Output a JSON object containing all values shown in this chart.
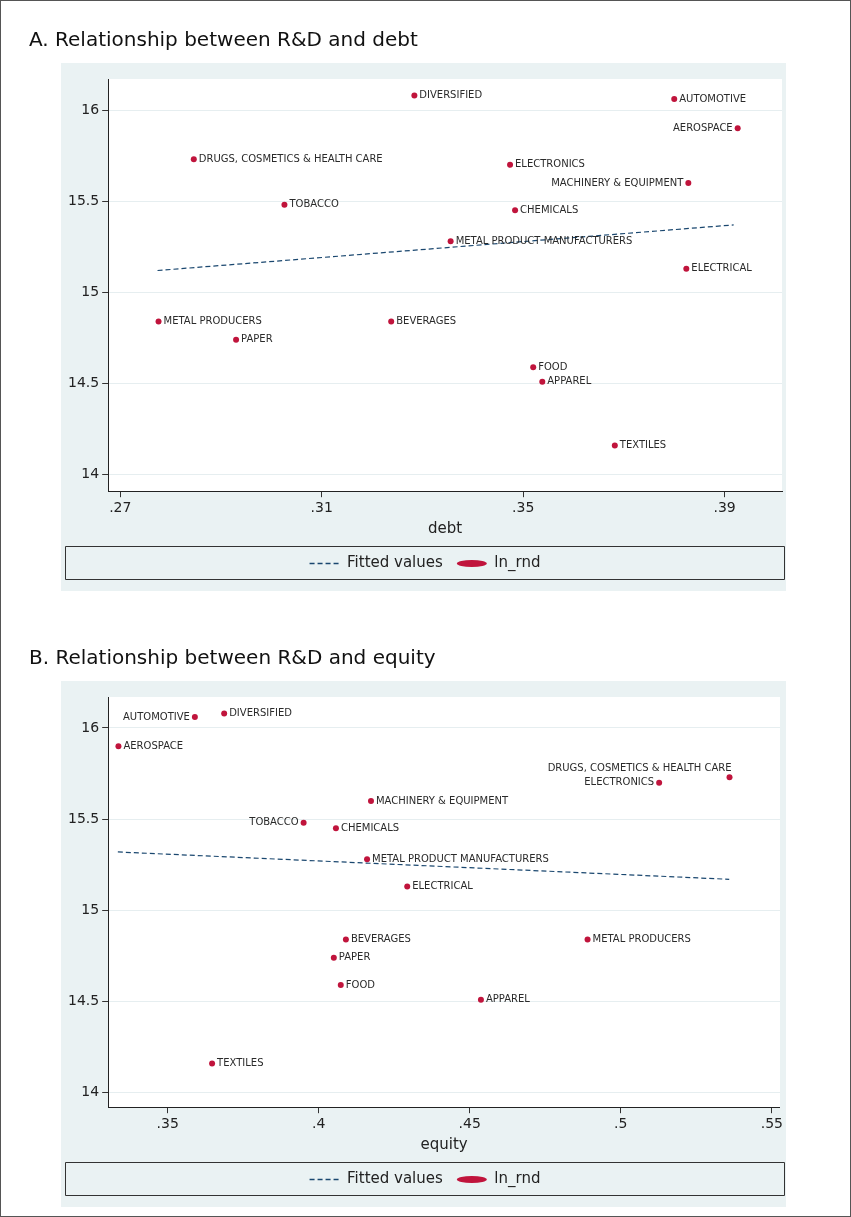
{
  "chart_data": [
    {
      "type": "scatter",
      "title": "A. Relationship between R&D and debt",
      "xlabel": "debt",
      "xlim": [
        0.2676,
        0.4014
      ],
      "ylim": [
        13.91,
        16.17
      ],
      "xticks": [
        {
          "value": 0.27,
          "label": ".27"
        },
        {
          "value": 0.31,
          "label": ".31"
        },
        {
          "value": 0.35,
          "label": ".35"
        },
        {
          "value": 0.39,
          "label": ".39"
        }
      ],
      "yticks": [
        14,
        14.5,
        15,
        15.5,
        16
      ],
      "grid": "y",
      "legend": "bottom",
      "series": [
        {
          "name": "Fitted values",
          "type": "line",
          "color": "#1a476f",
          "line_style": "dashed",
          "marker": "none",
          "x": [
            0.2774,
            0.3918
          ],
          "values": [
            15.12,
            15.37
          ]
        },
        {
          "name": "ln_rnd",
          "type": "scatter",
          "color": "#c0143c",
          "marker": "circle",
          "x": [
            0.3284,
            0.38,
            0.3926,
            0.2846,
            0.3474,
            0.3828,
            0.3026,
            0.3484,
            0.3356,
            0.3824,
            0.2776,
            0.3238,
            0.293,
            0.352,
            0.3538,
            0.3682
          ],
          "values": [
            16.08,
            16.06,
            15.9,
            15.73,
            15.7,
            15.6,
            15.48,
            15.45,
            15.28,
            15.13,
            14.84,
            14.84,
            14.74,
            14.59,
            14.51,
            14.16
          ],
          "value_labels": [
            "DIVERSIFIED",
            "AUTOMOTIVE",
            "AEROSPACE",
            "DRUGS, COSMETICS & HEALTH CARE",
            "ELECTRONICS",
            "MACHINERY & EQUIPMENT",
            "TOBACCO",
            "CHEMICALS",
            "METAL PRODUCT MANUFACTURERS",
            "ELECTRICAL",
            "METAL PRODUCERS",
            "BEVERAGES",
            "PAPER",
            "FOOD",
            "APPAREL",
            "TEXTILES"
          ]
        }
      ]
    },
    {
      "type": "scatter",
      "title": "B. Relationship between R&D and equity",
      "xlabel": "equity",
      "xlim": [
        0.3303,
        0.5527
      ],
      "ylim": [
        13.92,
        16.17
      ],
      "xticks": [
        {
          "value": 0.35,
          "label": ".35"
        },
        {
          "value": 0.4,
          "label": ".4"
        },
        {
          "value": 0.45,
          "label": ".45"
        },
        {
          "value": 0.5,
          "label": ".5"
        },
        {
          "value": 0.55,
          "label": ".55"
        }
      ],
      "yticks": [
        14,
        14.5,
        15,
        15.5,
        16
      ],
      "grid": "y",
      "legend": "bottom",
      "series": [
        {
          "name": "Fitted values",
          "type": "line",
          "color": "#1a476f",
          "line_style": "dashed",
          "marker": "none",
          "x": [
            0.3335,
            0.5359
          ],
          "values": [
            15.32,
            15.17
          ]
        },
        {
          "name": "ln_rnd",
          "type": "scatter",
          "color": "#c0143c",
          "marker": "circle",
          "x": [
            0.3687,
            0.359,
            0.3337,
            0.536,
            0.5127,
            0.4173,
            0.395,
            0.4057,
            0.416,
            0.4293,
            0.489,
            0.409,
            0.405,
            0.4073,
            0.4537,
            0.3647
          ],
          "values": [
            16.08,
            16.06,
            15.9,
            15.73,
            15.7,
            15.6,
            15.48,
            15.45,
            15.28,
            15.13,
            14.84,
            14.84,
            14.74,
            14.59,
            14.51,
            14.16
          ],
          "value_labels": [
            "DIVERSIFIED",
            "AUTOMOTIVE",
            "AEROSPACE",
            "DRUGS, COSMETICS & HEALTH CARE",
            "ELECTRONICS",
            "MACHINERY & EQUIPMENT",
            "TOBACCO",
            "CHEMICALS",
            "METAL PRODUCT MANUFACTURERS",
            "ELECTRICAL",
            "METAL PRODUCERS",
            "BEVERAGES",
            "PAPER",
            "FOOD",
            "APPAREL",
            "TEXTILES"
          ]
        }
      ]
    }
  ]
}
